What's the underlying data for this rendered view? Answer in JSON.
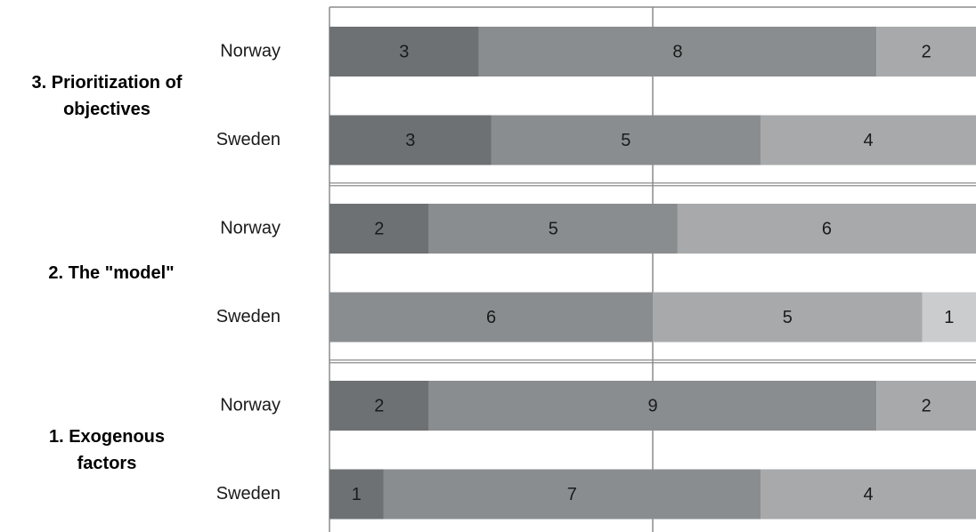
{
  "chart_data": {
    "type": "stacked-bar-100",
    "orientation": "horizontal",
    "groups": [
      "3. Prioritization of objectives",
      "2. The \"model\"",
      "1. Exogenous factors"
    ],
    "categories": [
      "Norway",
      "Sweden",
      "Norway",
      "Sweden",
      "Norway",
      "Sweden"
    ],
    "series": [
      {
        "color": "#6e7174",
        "values": [
          3,
          3,
          2,
          null,
          2,
          1
        ]
      },
      {
        "color": "#8a8d90",
        "values": [
          8,
          5,
          5,
          6,
          9,
          7
        ]
      },
      {
        "color": "#a7a9ab",
        "values": [
          2,
          4,
          6,
          5,
          2,
          4
        ]
      },
      {
        "color": "#cbcccd",
        "values": [
          null,
          null,
          null,
          1,
          null,
          null
        ]
      }
    ],
    "data_labels": true
  }
}
